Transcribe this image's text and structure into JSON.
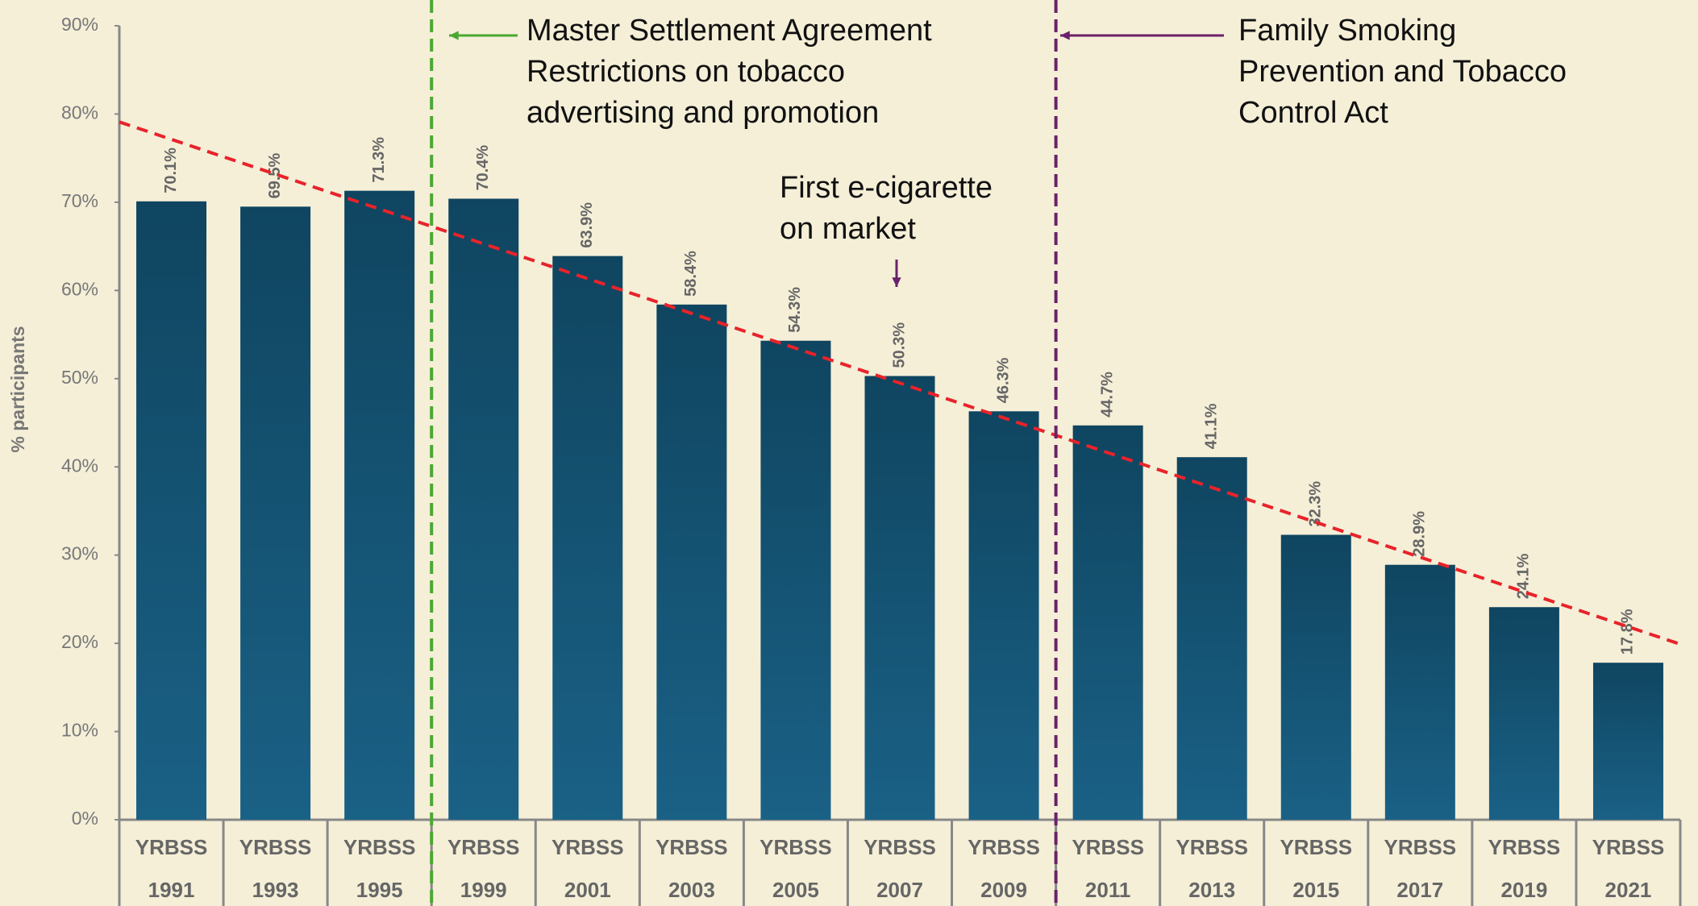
{
  "chart_data": {
    "type": "bar",
    "y_axis_label": "% participants",
    "categories": [
      "1991",
      "1993",
      "1995",
      "1999",
      "2001",
      "2003",
      "2005",
      "2007",
      "2009",
      "2011",
      "2013",
      "2015",
      "2017",
      "2019",
      "2021"
    ],
    "category_sources": [
      "YRBSS",
      "YRBSS",
      "YRBSS",
      "YRBSS",
      "YRBSS",
      "YRBSS",
      "YRBSS",
      "YRBSS",
      "YRBSS",
      "YRBSS",
      "YRBSS",
      "YRBSS",
      "YRBSS",
      "YRBSS",
      "YRBSS"
    ],
    "values": [
      70.1,
      69.5,
      71.3,
      70.4,
      63.9,
      58.4,
      54.3,
      50.3,
      46.3,
      44.7,
      41.1,
      32.3,
      28.9,
      24.1,
      17.8
    ],
    "value_labels": [
      "70.1%",
      "69.5%",
      "71.3%",
      "70.4%",
      "63.9%",
      "58.4%",
      "54.3%",
      "50.3%",
      "46.3%",
      "44.7%",
      "41.1%",
      "32.3%",
      "28.9%",
      "24.1%",
      "17.8%"
    ],
    "color": "#13506e",
    "ylim": [
      0,
      90
    ],
    "yticks": [
      {
        "value": 0,
        "label": "0%"
      },
      {
        "value": 10,
        "label": "10%"
      },
      {
        "value": 20,
        "label": "20%"
      },
      {
        "value": 30,
        "label": "30%"
      },
      {
        "value": 40,
        "label": "40%"
      },
      {
        "value": 50,
        "label": "50%"
      },
      {
        "value": 60,
        "label": "60%"
      },
      {
        "value": 70,
        "label": "70%"
      },
      {
        "value": 80,
        "label": "80%"
      },
      {
        "value": 90,
        "label": "90%"
      }
    ],
    "trendline": {
      "values": [
        79.1,
        19.9
      ],
      "color": "#e8232a"
    },
    "annotations": [
      {
        "lines": [
          "Master Settlement Agreement",
          "Restrictions on tobacco",
          "advertising and promotion"
        ],
        "color": "#4aa832"
      },
      {
        "lines": [
          "Family Smoking",
          "Prevention and Tobacco",
          "Control Act"
        ],
        "color": "#6b2169"
      },
      {
        "lines": [
          "First e-cigarette",
          "on market"
        ],
        "color": "#6b2169"
      }
    ]
  }
}
